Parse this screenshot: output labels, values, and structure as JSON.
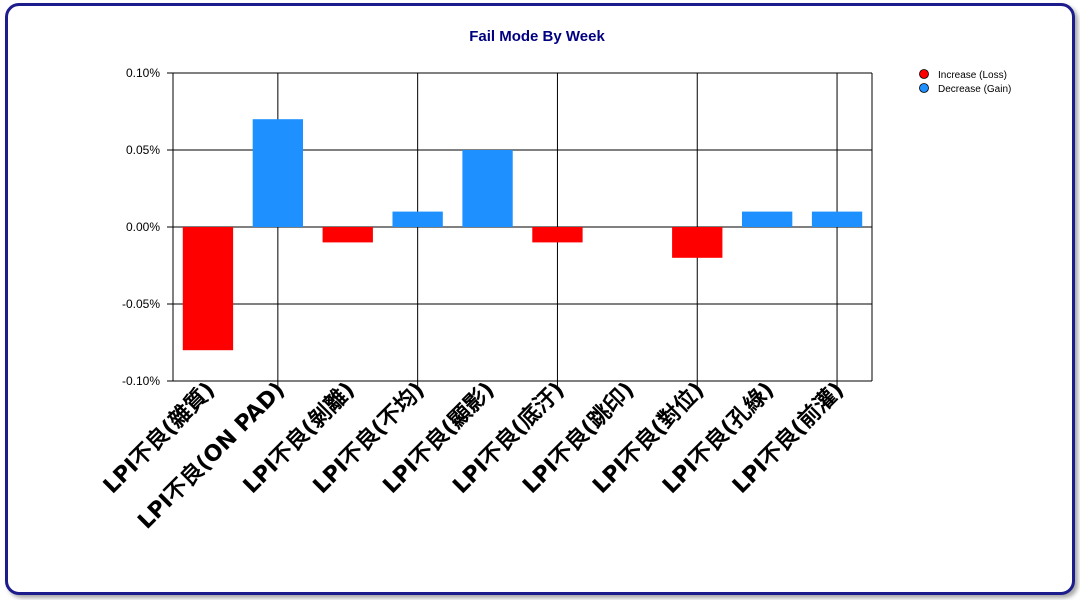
{
  "chart_data": {
    "type": "bar",
    "title": "Fail Mode By Week",
    "categories": [
      "LPI不良(雜質)",
      "LPI不良(ON PAD)",
      "LPI不良(剝離)",
      "LPI不良(不均)",
      "LPI不良(顯影)",
      "LPI不良(底汙)",
      "LPI不良(跳印)",
      "LPI不良(對位)",
      "LPI不良(孔綠)",
      "LPI不良(前灌)"
    ],
    "values": [
      -0.08,
      0.07,
      -0.01,
      0.01,
      0.05,
      -0.01,
      0.0,
      -0.02,
      0.01,
      0.01
    ],
    "value_unit": "%",
    "ylim": [
      -0.1,
      0.1
    ],
    "yticks": [
      "0.10%",
      "0.05%",
      "0.00%",
      "-0.05%",
      "-0.10%"
    ],
    "ytick_values": [
      0.1,
      0.05,
      0.0,
      -0.05,
      -0.1
    ],
    "grid": true,
    "legend": {
      "position": "top-right",
      "entries": [
        {
          "label": "Increase (Loss)",
          "color": "#ff0000"
        },
        {
          "label": "Decrease (Gain)",
          "color": "#1e90ff"
        }
      ]
    },
    "colors": {
      "negative": "#ff0000",
      "positive": "#1e90ff",
      "title": "#000080",
      "frame": "#1c1c8c"
    }
  }
}
